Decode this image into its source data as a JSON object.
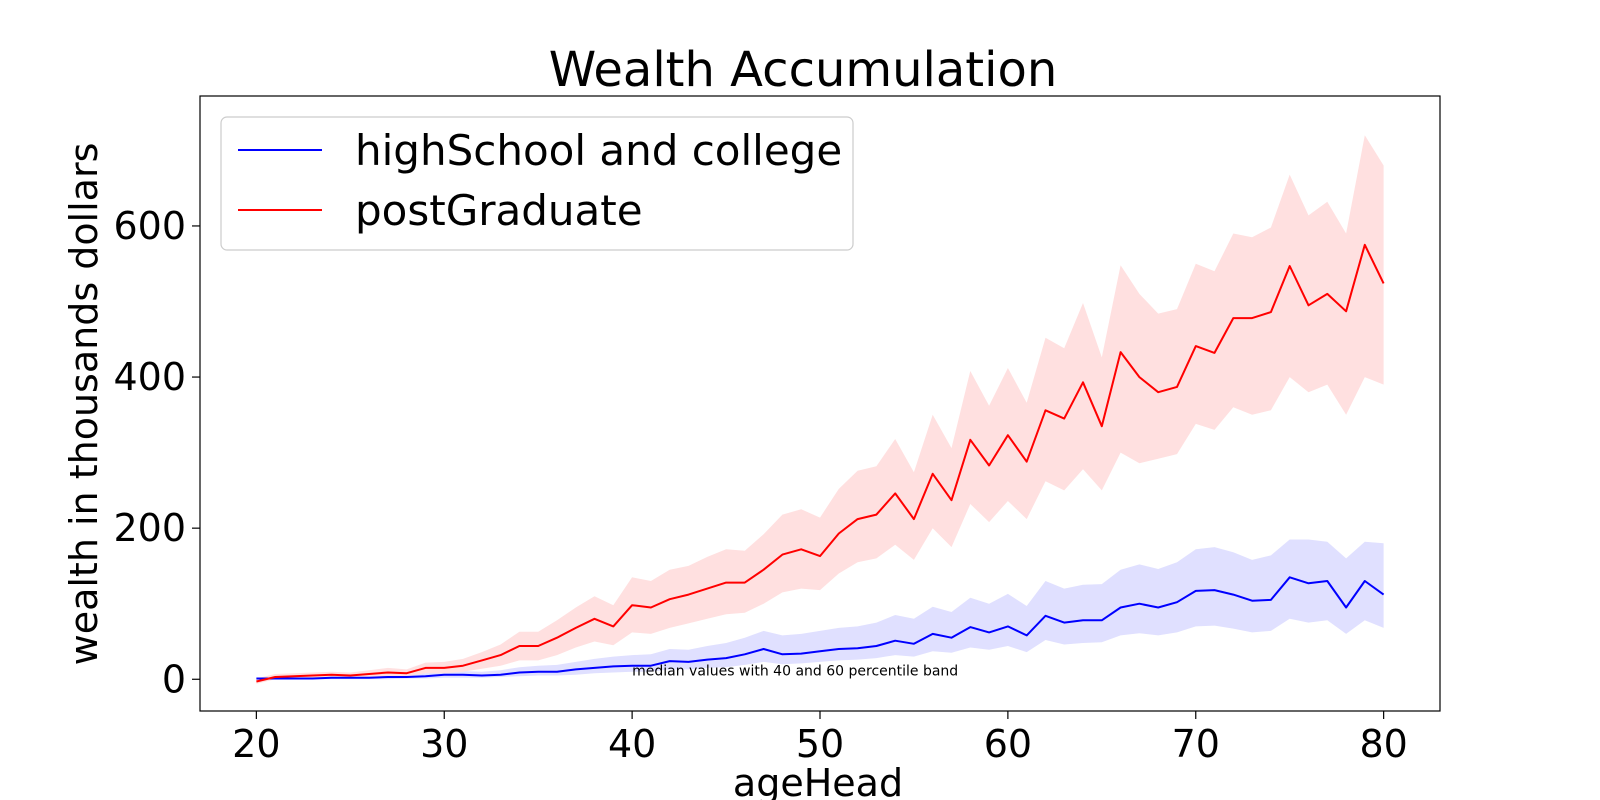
{
  "chart_data": {
    "type": "line",
    "title": "Wealth Accumulation",
    "xlabel": "ageHead",
    "ylabel": "wealth in thousands dollars",
    "xlim": [
      17,
      83
    ],
    "ylim": [
      -42,
      772
    ],
    "xticks": [
      20,
      30,
      40,
      50,
      60,
      70,
      80
    ],
    "yticks": [
      0,
      200,
      400,
      600
    ],
    "grid": false,
    "legend_position": "top-left",
    "annotation": {
      "text": "median values with 40 and 60 percentile band",
      "x": 40,
      "y": 5
    },
    "x": [
      20,
      21,
      22,
      23,
      24,
      25,
      26,
      27,
      28,
      29,
      30,
      31,
      32,
      33,
      34,
      35,
      36,
      37,
      38,
      39,
      40,
      41,
      42,
      43,
      44,
      45,
      46,
      47,
      48,
      49,
      50,
      51,
      52,
      53,
      54,
      55,
      56,
      57,
      58,
      59,
      60,
      61,
      62,
      63,
      64,
      65,
      66,
      67,
      68,
      69,
      70,
      71,
      72,
      73,
      74,
      75,
      76,
      77,
      78,
      79,
      80
    ],
    "series": [
      {
        "name": "highSchool and college",
        "color": "#0000ff",
        "band_color": "#e0e0ff",
        "values": [
          1,
          1,
          1,
          1,
          2,
          2,
          2,
          3,
          3,
          4,
          6,
          6,
          5,
          6,
          9,
          10,
          10,
          13,
          15,
          17,
          18,
          18,
          24,
          23,
          26,
          28,
          33,
          40,
          33,
          34,
          37,
          40,
          41,
          44,
          51,
          47,
          60,
          55,
          69,
          62,
          70,
          58,
          84,
          75,
          78,
          78,
          95,
          100,
          95,
          102,
          117,
          118,
          112,
          104,
          105,
          135,
          127,
          130,
          95,
          130,
          112
        ],
        "lower": [
          -1,
          0,
          0,
          0,
          0,
          0,
          0,
          0,
          1,
          1,
          2,
          2,
          2,
          3,
          4,
          5,
          5,
          6,
          8,
          9,
          10,
          10,
          13,
          13,
          15,
          16,
          19,
          23,
          20,
          21,
          23,
          25,
          26,
          28,
          32,
          30,
          37,
          35,
          42,
          39,
          44,
          36,
          52,
          46,
          48,
          49,
          58,
          61,
          58,
          62,
          70,
          71,
          67,
          62,
          64,
          80,
          75,
          78,
          60,
          78,
          68
        ],
        "upper": [
          2,
          2,
          2,
          3,
          4,
          4,
          4,
          5,
          6,
          8,
          10,
          11,
          10,
          12,
          16,
          18,
          19,
          23,
          27,
          30,
          32,
          33,
          40,
          39,
          44,
          48,
          55,
          64,
          58,
          60,
          64,
          68,
          70,
          75,
          85,
          80,
          96,
          89,
          108,
          100,
          113,
          97,
          130,
          120,
          125,
          126,
          145,
          152,
          146,
          155,
          172,
          175,
          168,
          158,
          164,
          185,
          185,
          182,
          160,
          182,
          180
        ]
      },
      {
        "name": "postGraduate",
        "color": "#ff0000",
        "band_color": "#ffe0e0",
        "values": [
          -3,
          3,
          4,
          5,
          6,
          5,
          7,
          9,
          8,
          15,
          15,
          18,
          25,
          32,
          44,
          44,
          55,
          68,
          80,
          70,
          98,
          95,
          106,
          112,
          120,
          128,
          128,
          145,
          165,
          172,
          163,
          193,
          212,
          218,
          246,
          212,
          272,
          237,
          317,
          283,
          323,
          288,
          356,
          345,
          393,
          335,
          433,
          400,
          380,
          387,
          441,
          432,
          478,
          478,
          486,
          547,
          495,
          510,
          487,
          575,
          524
        ],
        "lower": [
          -6,
          0,
          1,
          2,
          2,
          2,
          3,
          4,
          4,
          8,
          8,
          10,
          14,
          18,
          25,
          25,
          32,
          42,
          50,
          45,
          62,
          60,
          68,
          74,
          80,
          86,
          88,
          100,
          115,
          120,
          118,
          140,
          155,
          160,
          178,
          158,
          200,
          175,
          232,
          208,
          236,
          212,
          262,
          250,
          278,
          250,
          300,
          286,
          292,
          298,
          338,
          330,
          360,
          350,
          356,
          400,
          380,
          390,
          350,
          400,
          390
        ],
        "upper": [
          1,
          7,
          8,
          9,
          10,
          9,
          12,
          15,
          13,
          22,
          23,
          27,
          36,
          46,
          63,
          63,
          78,
          95,
          110,
          98,
          135,
          130,
          145,
          150,
          162,
          172,
          170,
          192,
          218,
          225,
          214,
          252,
          276,
          282,
          318,
          274,
          350,
          306,
          408,
          362,
          412,
          366,
          452,
          438,
          498,
          426,
          548,
          510,
          484,
          490,
          550,
          540,
          590,
          585,
          598,
          668,
          614,
          632,
          590,
          720,
          680
        ]
      }
    ]
  }
}
